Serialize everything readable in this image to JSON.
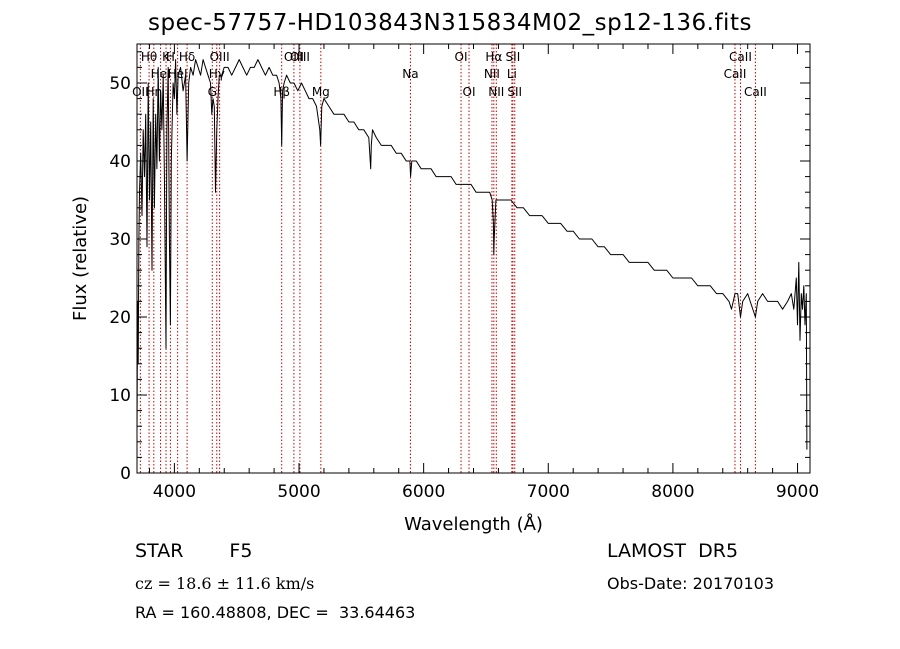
{
  "title": "spec-57757-HD103843N315834M02_sp12-136.fits",
  "footer": {
    "class_label": "STAR",
    "subclass": "F5",
    "survey": "LAMOST  DR5",
    "cz": "cz = 18.6 ± 11.6 km/s",
    "obs_date": "Obs-Date: 20170103",
    "radec": "RA = 160.48808, DEC =  33.64463"
  },
  "colors": {
    "spectrum": "#000000",
    "line_marker": "#cc0000",
    "axes": "#000000"
  },
  "chart_data": {
    "type": "line",
    "title": "spec-57757-HD103843N315834M02_sp12-136.fits",
    "xlabel": "Wavelength (Å)",
    "ylabel": "Flux (relative)",
    "xlim": [
      3700,
      9100
    ],
    "ylim": [
      0,
      55
    ],
    "xticks": [
      4000,
      5000,
      6000,
      7000,
      8000,
      9000
    ],
    "yticks": [
      0,
      10,
      20,
      30,
      40,
      50
    ],
    "grid": false,
    "series": [
      {
        "x": [
          3700,
          3705,
          3710,
          3715,
          3720,
          3730,
          3740,
          3750,
          3760,
          3770,
          3780,
          3790,
          3800,
          3810,
          3820,
          3830,
          3840,
          3850,
          3860,
          3870,
          3880,
          3890,
          3900,
          3910,
          3920,
          3930,
          3933,
          3936,
          3940,
          3950,
          3960,
          3968,
          3975,
          3990,
          4000,
          4010,
          4020,
          4030,
          4050,
          4070,
          4090,
          4102,
          4115,
          4130,
          4150,
          4170,
          4190,
          4210,
          4230,
          4250,
          4270,
          4290,
          4300,
          4310,
          4320,
          4330,
          4340,
          4350,
          4360,
          4380,
          4400,
          4430,
          4460,
          4490,
          4520,
          4550,
          4580,
          4610,
          4640,
          4670,
          4700,
          4730,
          4760,
          4790,
          4820,
          4840,
          4855,
          4861,
          4868,
          4880,
          4900,
          4930,
          4960,
          4990,
          5020,
          5050,
          5080,
          5110,
          5140,
          5167,
          5173,
          5183,
          5200,
          5240,
          5280,
          5320,
          5360,
          5400,
          5440,
          5480,
          5520,
          5560,
          5575,
          5580,
          5590,
          5620,
          5660,
          5700,
          5740,
          5780,
          5820,
          5860,
          5890,
          5895,
          5905,
          5940,
          5980,
          6020,
          6060,
          6100,
          6140,
          6180,
          6220,
          6260,
          6300,
          6340,
          6380,
          6420,
          6460,
          6500,
          6530,
          6550,
          6560,
          6563,
          6566,
          6580,
          6600,
          6650,
          6700,
          6750,
          6800,
          6850,
          6900,
          6950,
          7000,
          7050,
          7100,
          7150,
          7200,
          7250,
          7300,
          7350,
          7400,
          7450,
          7500,
          7550,
          7600,
          7650,
          7700,
          7750,
          7800,
          7850,
          7900,
          7950,
          8000,
          8050,
          8100,
          8150,
          8200,
          8250,
          8300,
          8350,
          8400,
          8450,
          8470,
          8498,
          8520,
          8542,
          8560,
          8600,
          8620,
          8662,
          8680,
          8720,
          8760,
          8800,
          8840,
          8880,
          8920,
          8950,
          8970,
          8990,
          9000,
          9010,
          9020,
          9030,
          9040,
          9050,
          9060,
          9070,
          9075
        ],
        "values": [
          5,
          22,
          14,
          30,
          36,
          41,
          33,
          44,
          38,
          46,
          29,
          50,
          35,
          45,
          26,
          48,
          34,
          46,
          39,
          52,
          40,
          49,
          44,
          51,
          38,
          20,
          16,
          30,
          44,
          52,
          30,
          19,
          40,
          50,
          48,
          53,
          46,
          51,
          52,
          49,
          51,
          40,
          50,
          52,
          51,
          53,
          52,
          51,
          53,
          52,
          51,
          50,
          46,
          48,
          47,
          36,
          44,
          48,
          51,
          51,
          52,
          52,
          51,
          52,
          53,
          52,
          51,
          52,
          52,
          53,
          52,
          51,
          52,
          51,
          51,
          50,
          48,
          42,
          49,
          50,
          51,
          50,
          50,
          49,
          50,
          49,
          48,
          48,
          47,
          44,
          42,
          47,
          48,
          47,
          46,
          46,
          46,
          45,
          45,
          44,
          44,
          43,
          39,
          42,
          44,
          43,
          42,
          42,
          42,
          41,
          41,
          40,
          40,
          38,
          40,
          40,
          39,
          39,
          39,
          38,
          38,
          38,
          38,
          37,
          37,
          37,
          37,
          36,
          36,
          36,
          36,
          35,
          32,
          28,
          30,
          35,
          35,
          35,
          35,
          34,
          34,
          33,
          33,
          33,
          32,
          32,
          32,
          31,
          31,
          30,
          30,
          30,
          29,
          29,
          28,
          28,
          28,
          27,
          27,
          27,
          27,
          26,
          26,
          26,
          25,
          25,
          25,
          25,
          24,
          24,
          24,
          23,
          23,
          22,
          21,
          23,
          23,
          20,
          22,
          23,
          22,
          20,
          22,
          23,
          22,
          22,
          22,
          21,
          22,
          23,
          21,
          25,
          19,
          27,
          17,
          23,
          21,
          24,
          19,
          23,
          3
        ]
      }
    ],
    "line_markers": [
      {
        "x": 3727,
        "label": "OII",
        "row": 3
      },
      {
        "x": 3797,
        "label": "Hθ",
        "row": 1
      },
      {
        "x": 3835,
        "label": "Hη",
        "row": 3
      },
      {
        "x": 3889,
        "label": "HeI",
        "row": 2
      },
      {
        "x": 3933,
        "label": "K",
        "row": 1
      },
      {
        "x": 3968,
        "label": "H",
        "row": 1
      },
      {
        "x": 4026,
        "label": "HeI",
        "row": 2
      },
      {
        "x": 4102,
        "label": "Hδ",
        "row": 1
      },
      {
        "x": 4304,
        "label": "G",
        "row": 3
      },
      {
        "x": 4340,
        "label": "Hγ",
        "row": 2
      },
      {
        "x": 4363,
        "label": "OIII",
        "row": 1
      },
      {
        "x": 4861,
        "label": "Hβ",
        "row": 3
      },
      {
        "x": 4959,
        "label": "OIII",
        "row": 1
      },
      {
        "x": 5007,
        "label": "OIII",
        "row": 1
      },
      {
        "x": 5175,
        "label": "Mg",
        "row": 3
      },
      {
        "x": 5894,
        "label": "Na",
        "row": 2
      },
      {
        "x": 6300,
        "label": "OI",
        "row": 1
      },
      {
        "x": 6364,
        "label": "OI",
        "row": 3
      },
      {
        "x": 6548,
        "label": "NII",
        "row": 2
      },
      {
        "x": 6563,
        "label": "Hα",
        "row": 1
      },
      {
        "x": 6583,
        "label": "NII",
        "row": 3
      },
      {
        "x": 6708,
        "label": "Li",
        "row": 2
      },
      {
        "x": 6716,
        "label": "SII",
        "row": 1
      },
      {
        "x": 6731,
        "label": "SII",
        "row": 3
      },
      {
        "x": 8498,
        "label": "CaII",
        "row": 2
      },
      {
        "x": 8542,
        "label": "CaII",
        "row": 1
      },
      {
        "x": 8662,
        "label": "CaII",
        "row": 3
      }
    ]
  }
}
